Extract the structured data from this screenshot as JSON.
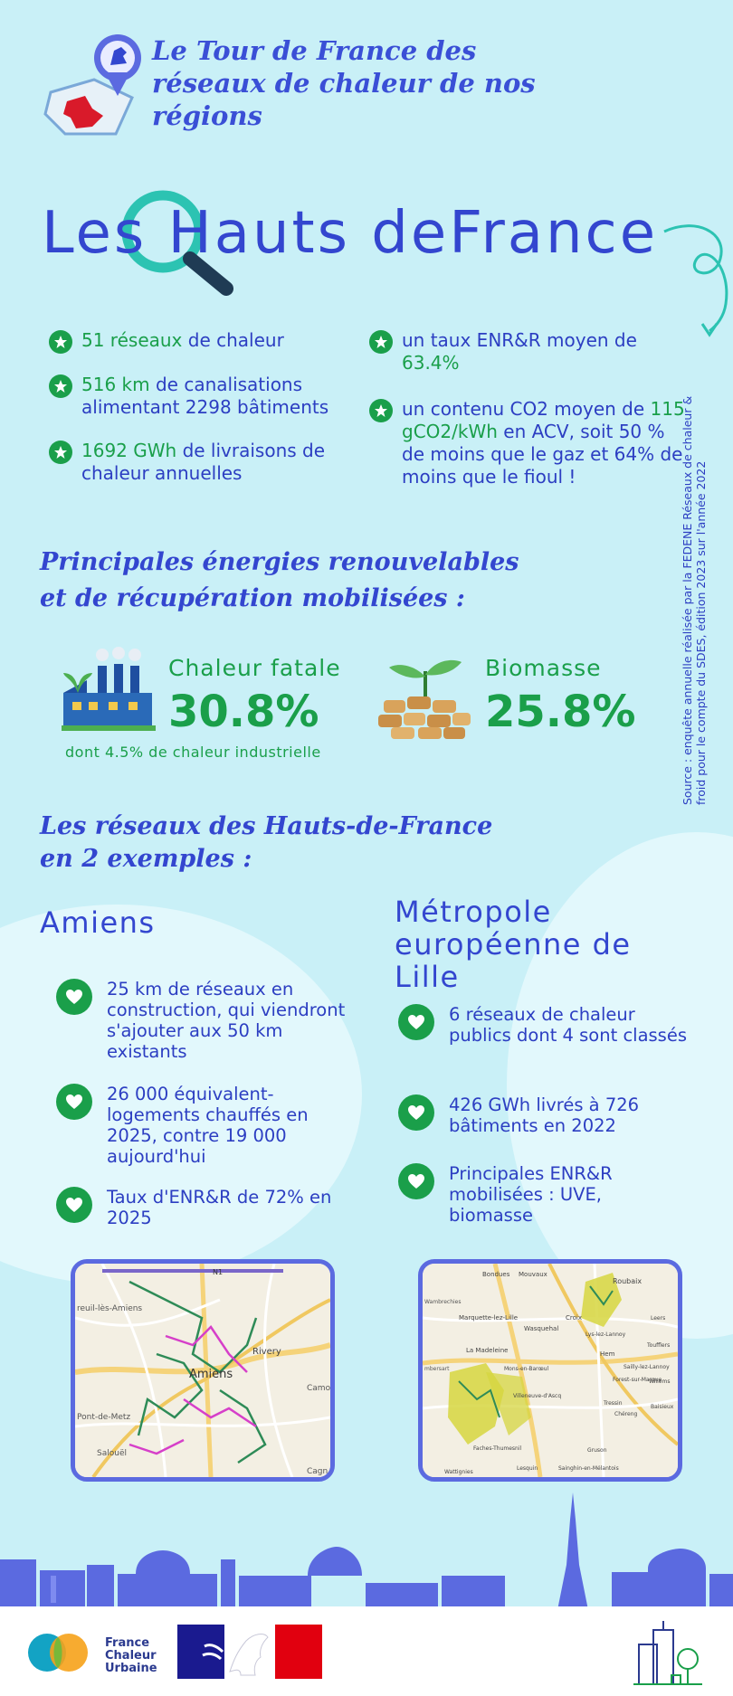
{
  "header": {
    "series_title": "Le Tour de France des réseaux de chaleur de nos régions",
    "region_name": "Les Hauts deFrance"
  },
  "stats_left": [
    {
      "highlight": "51 réseaux",
      "rest": " de chaleur"
    },
    {
      "highlight": "516 km",
      "rest": " de canalisations alimentant 2298 bâtiments"
    },
    {
      "highlight": "1692 GWh",
      "rest": " de livraisons de chaleur annuelles"
    }
  ],
  "stats_right": [
    {
      "highlight": "",
      "rest": "un taux ENR&R moyen de ",
      "highlight2": "63.4%"
    },
    {
      "highlight": "",
      "rest": "un contenu CO2 moyen de ",
      "highlight2": "115 gCO2/kWh",
      "rest2": " en ACV, soit 50 % de moins que le gaz et 64% de moins que le fioul !"
    }
  ],
  "source_note": "Source : enquête annuelle réalisée par la FEDENE Réseaux de chaleur & froid pour le compte du SDES, édition 2023 sur l'année 2022",
  "energies": {
    "title_line1": "Principales énergies renouvelables",
    "title_line2": "et de récupération mobilisées :",
    "items": [
      {
        "label": "Chaleur fatale",
        "value": "30.8%",
        "note": "dont 4.5% de chaleur industrielle"
      },
      {
        "label": "Biomasse",
        "value": "25.8%",
        "note": ""
      }
    ]
  },
  "examples": {
    "title_line1": "Les réseaux des Hauts-de-France",
    "title_line2": "en 2 exemples :",
    "amiens": {
      "name": "Amiens",
      "points": [
        "25 km de réseaux en construction, qui viendront s'ajouter aux 50 km existants",
        "26 000 équivalent-logements chauffés en 2025, contre 19 000 aujourd'hui",
        "Taux d'ENR&R de 72% en 2025"
      ],
      "map_labels": [
        "N1",
        "reuil-lès-Amiens",
        "Rivery",
        "Amiens",
        "Camo",
        "Pont-de-Metz",
        "Salouël",
        "Cagn"
      ]
    },
    "lille": {
      "name": "Métropole européenne de Lille",
      "points": [
        "6 réseaux de chaleur publics dont 4 sont classés",
        "426 GWh livrés à 726 bâtiments en 2022",
        "Principales ENR&R mobilisées : UVE, biomasse"
      ],
      "map_labels": [
        "Bondues",
        "Mouvaux",
        "Roubaix",
        "Wambrechies",
        "Marquette-lez-Lille",
        "Croix",
        "Wasquehal",
        "Lys-lez-Lannoy",
        "Leers",
        "La Madeleine",
        "Toufflers",
        "Hem",
        "mbersart",
        "Mons-en-Barœul",
        "Sailly-lez-Lannoy",
        "Forest-sur-Marque",
        "Willems",
        "Villeneuve-d'Ascq",
        "Tressin",
        "Chéreng",
        "Baisieux",
        "Faches-Thumesnil",
        "Gruson",
        "Lesquin",
        "Sainghin-en-Mélantois",
        "Wattignies"
      ]
    }
  },
  "footer": {
    "logo_text_1": "France",
    "logo_text_2": "Chaleur",
    "logo_text_3": "Urbaine"
  },
  "colors": {
    "background": "#c9f0f7",
    "title_blue": "#3346cf",
    "green": "#1a9f4a",
    "map_border": "#5b6ae0"
  }
}
